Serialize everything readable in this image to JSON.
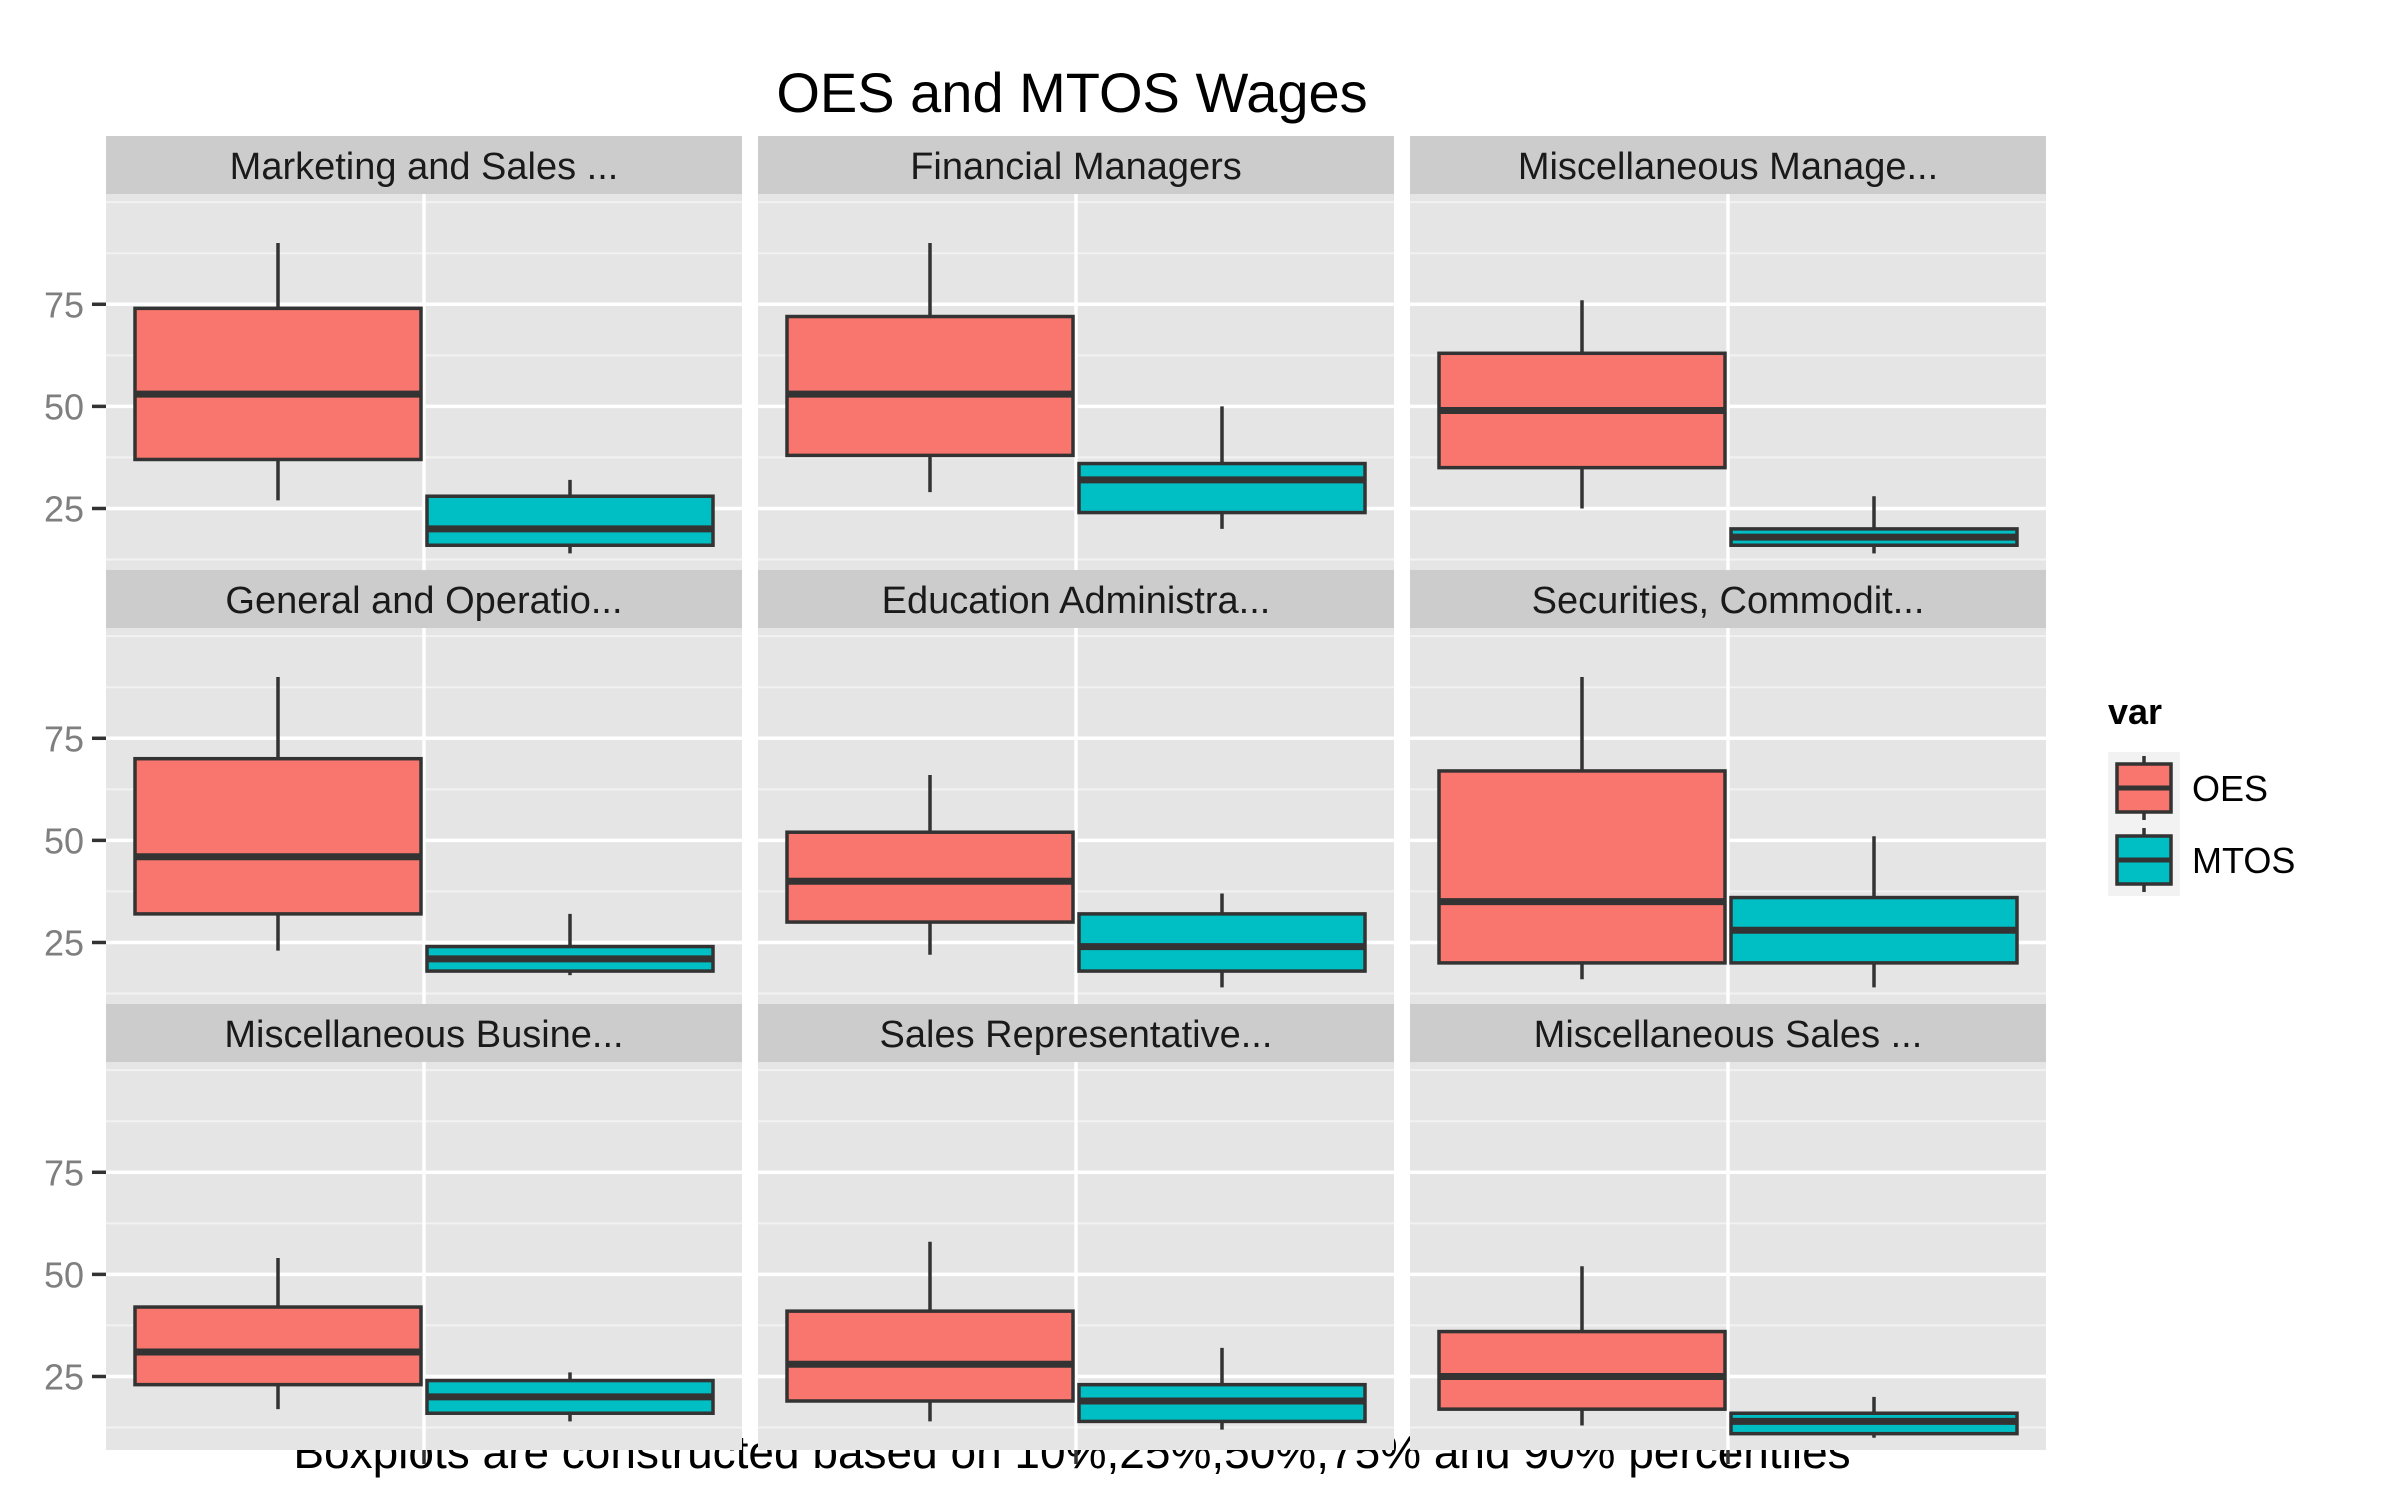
{
  "chart_data": {
    "type": "boxplot",
    "title": "OES and MTOS Wages",
    "caption": "Boxplots are constructed based on 10%,25%,50%,75% and 90% percentiles",
    "xlabel": "",
    "ylabel": "",
    "ylim": [
      7,
      102
    ],
    "yticks": [
      25,
      50,
      75
    ],
    "grid": true,
    "legend": {
      "title": "var",
      "position": "right",
      "entries": [
        {
          "name": "OES",
          "color": "#F8766D"
        },
        {
          "name": "MTOS",
          "color": "#00BFC4"
        }
      ]
    },
    "colors": {
      "panel_bg": "#E5E5E5",
      "strip_bg": "#CCCCCC",
      "grid_major": "#FFFFFF",
      "grid_minor": "#F2F2F2",
      "box_line": "#333333",
      "tick_label": "#7F7F7F"
    },
    "facets": [
      {
        "label": "Marketing and Sales ...",
        "boxes": [
          {
            "series": "OES",
            "p10": 27,
            "p25": 37,
            "p50": 53,
            "p75": 74,
            "p90": 90
          },
          {
            "series": "MTOS",
            "p10": 14,
            "p25": 16,
            "p50": 20,
            "p75": 28,
            "p90": 32
          }
        ]
      },
      {
        "label": "Financial Managers",
        "boxes": [
          {
            "series": "OES",
            "p10": 29,
            "p25": 38,
            "p50": 53,
            "p75": 72,
            "p90": 90
          },
          {
            "series": "MTOS",
            "p10": 20,
            "p25": 24,
            "p50": 32,
            "p75": 36,
            "p90": 50
          }
        ]
      },
      {
        "label": "Miscellaneous Manage...",
        "boxes": [
          {
            "series": "OES",
            "p10": 25,
            "p25": 35,
            "p50": 49,
            "p75": 63,
            "p90": 76
          },
          {
            "series": "MTOS",
            "p10": 14,
            "p25": 16,
            "p50": 18,
            "p75": 20,
            "p90": 28
          }
        ]
      },
      {
        "label": "General and Operatio...",
        "boxes": [
          {
            "series": "OES",
            "p10": 23,
            "p25": 32,
            "p50": 46,
            "p75": 70,
            "p90": 90
          },
          {
            "series": "MTOS",
            "p10": 17,
            "p25": 18,
            "p50": 21,
            "p75": 24,
            "p90": 32
          }
        ]
      },
      {
        "label": "Education Administra...",
        "boxes": [
          {
            "series": "OES",
            "p10": 22,
            "p25": 30,
            "p50": 40,
            "p75": 52,
            "p90": 66
          },
          {
            "series": "MTOS",
            "p10": 14,
            "p25": 18,
            "p50": 24,
            "p75": 32,
            "p90": 37
          }
        ]
      },
      {
        "label": "Securities, Commodit...",
        "boxes": [
          {
            "series": "OES",
            "p10": 16,
            "p25": 20,
            "p50": 35,
            "p75": 67,
            "p90": 90
          },
          {
            "series": "MTOS",
            "p10": 14,
            "p25": 20,
            "p50": 28,
            "p75": 36,
            "p90": 51
          }
        ]
      },
      {
        "label": "Miscellaneous Busine...",
        "boxes": [
          {
            "series": "OES",
            "p10": 17,
            "p25": 23,
            "p50": 31,
            "p75": 42,
            "p90": 54
          },
          {
            "series": "MTOS",
            "p10": 14,
            "p25": 16,
            "p50": 20,
            "p75": 24,
            "p90": 26
          }
        ]
      },
      {
        "label": "Sales Representative...",
        "boxes": [
          {
            "series": "OES",
            "p10": 14,
            "p25": 19,
            "p50": 28,
            "p75": 41,
            "p90": 58
          },
          {
            "series": "MTOS",
            "p10": 12,
            "p25": 14,
            "p50": 19,
            "p75": 23,
            "p90": 32
          }
        ]
      },
      {
        "label": "Miscellaneous Sales ...",
        "boxes": [
          {
            "series": "OES",
            "p10": 13,
            "p25": 17,
            "p50": 25,
            "p75": 36,
            "p90": 52
          },
          {
            "series": "MTOS",
            "p10": 10,
            "p25": 11,
            "p50": 14,
            "p75": 16,
            "p90": 20
          }
        ]
      }
    ]
  }
}
